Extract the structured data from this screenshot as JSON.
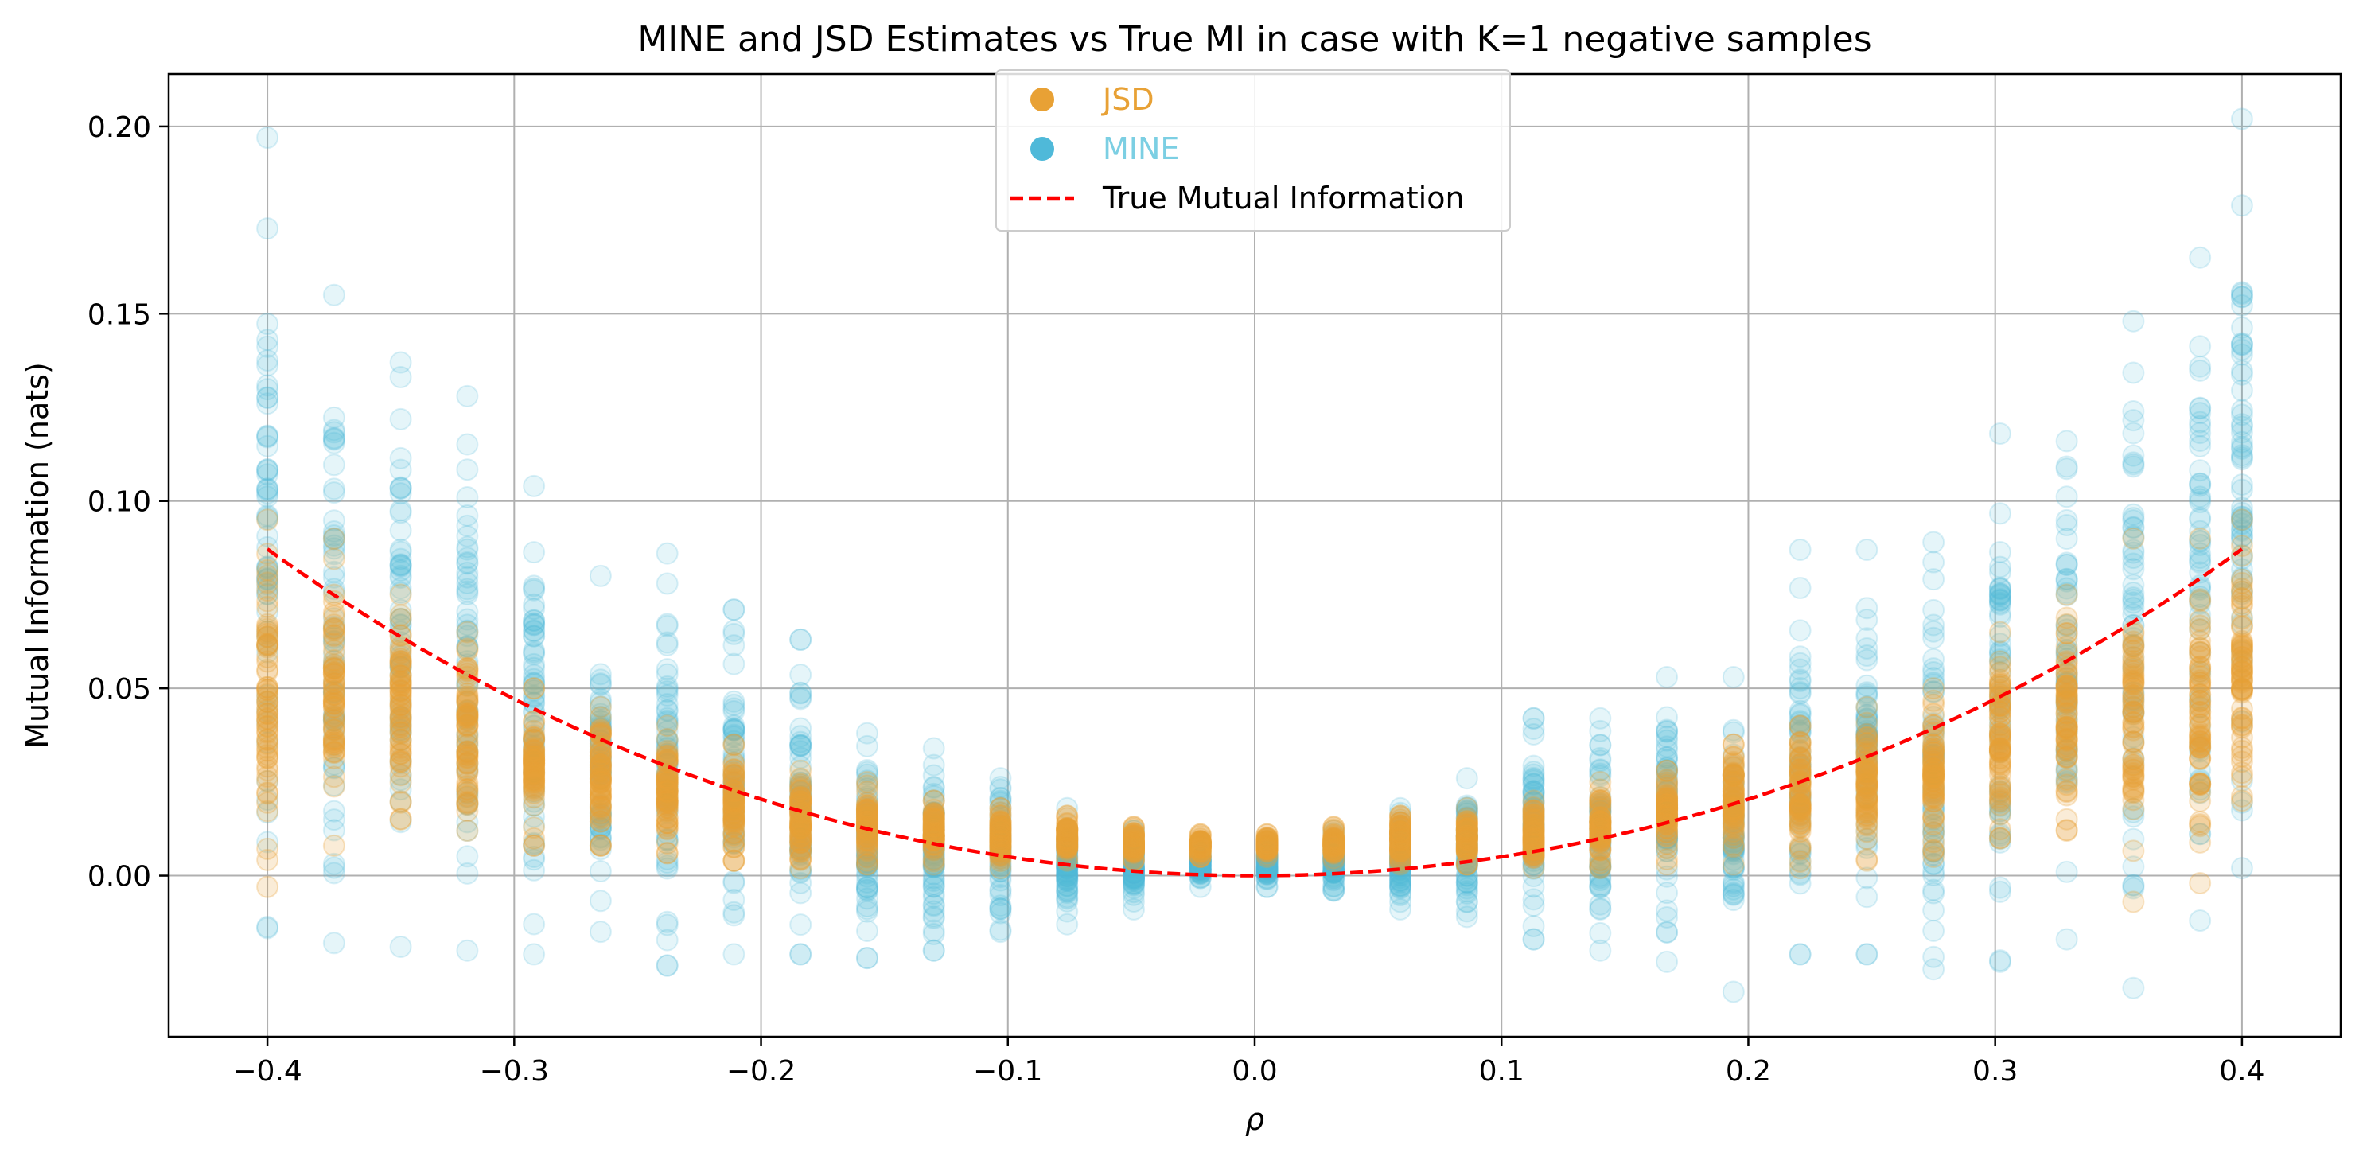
{
  "chart_data": {
    "type": "scatter",
    "title": "MINE and JSD Estimates vs True MI in case with K=1 negative samples",
    "xlabel": "ρ",
    "ylabel": "Mutual Information (nats)",
    "xlim": [
      -0.44,
      0.44
    ],
    "ylim": [
      -0.043,
      0.214
    ],
    "xticks": [
      -0.4,
      -0.3,
      -0.2,
      -0.1,
      0.0,
      0.1,
      0.2,
      0.3,
      0.4
    ],
    "xtick_labels": [
      "−0.4",
      "−0.3",
      "−0.2",
      "−0.1",
      "0.0",
      "0.1",
      "0.2",
      "0.3",
      "0.4"
    ],
    "yticks": [
      0.0,
      0.05,
      0.1,
      0.15,
      0.2
    ],
    "ytick_labels": [
      "0.00",
      "0.05",
      "0.10",
      "0.15",
      "0.20"
    ],
    "grid": true,
    "legend_position": "top-center",
    "legend": [
      {
        "label": "JSD",
        "kind": "marker",
        "color": "#E8A135"
      },
      {
        "label": "MINE",
        "kind": "marker",
        "color": "#4FB9D9"
      },
      {
        "label": "True Mutual Information",
        "kind": "dashed-line",
        "color": "#FF0000"
      }
    ],
    "rho": [
      -0.4,
      -0.3733,
      -0.3467,
      -0.32,
      -0.2933,
      -0.2667,
      -0.24,
      -0.2133,
      -0.1867,
      -0.16,
      -0.1333,
      -0.1067,
      -0.08,
      -0.0533,
      -0.0267,
      0.0,
      0.0267,
      0.0533,
      0.08,
      0.1067,
      0.1333,
      0.16,
      0.1867,
      0.2133,
      0.24,
      0.2667,
      0.2933,
      0.32,
      0.3467,
      0.3733,
      0.4
    ],
    "series": [
      {
        "name": "MINE",
        "color": "#4FB9D9",
        "opacity": 0.15,
        "x": [
          -0.4,
          -0.373,
          -0.346,
          -0.319,
          -0.292,
          -0.265,
          -0.238,
          -0.211,
          -0.184,
          -0.157,
          -0.13,
          -0.103,
          -0.076,
          -0.049,
          -0.022,
          0.005,
          0.032,
          0.059,
          0.086,
          0.113,
          0.14,
          0.167,
          0.194,
          0.221,
          0.248,
          0.275,
          0.302,
          0.329,
          0.356,
          0.383,
          0.4
        ],
        "y_min": [
          -0.014,
          -0.018,
          -0.019,
          -0.02,
          -0.021,
          -0.015,
          -0.024,
          -0.021,
          -0.021,
          -0.022,
          -0.02,
          -0.015,
          -0.013,
          -0.009,
          -0.003,
          -0.003,
          -0.004,
          -0.009,
          -0.011,
          -0.017,
          -0.02,
          -0.023,
          -0.031,
          -0.021,
          -0.021,
          -0.025,
          -0.023,
          -0.017,
          -0.03,
          -0.012,
          0.002
        ],
        "y_max": [
          0.197,
          0.155,
          0.137,
          0.128,
          0.104,
          0.08,
          0.086,
          0.071,
          0.063,
          0.038,
          0.034,
          0.026,
          0.018,
          0.012,
          0.008,
          0.008,
          0.012,
          0.018,
          0.026,
          0.042,
          0.042,
          0.053,
          0.053,
          0.087,
          0.087,
          0.089,
          0.118,
          0.116,
          0.148,
          0.165,
          0.202
        ]
      },
      {
        "name": "JSD",
        "color": "#E8A135",
        "opacity": 0.2,
        "x": [
          -0.4,
          -0.373,
          -0.346,
          -0.319,
          -0.292,
          -0.265,
          -0.238,
          -0.211,
          -0.184,
          -0.157,
          -0.13,
          -0.103,
          -0.076,
          -0.049,
          -0.022,
          0.005,
          0.032,
          0.059,
          0.086,
          0.113,
          0.14,
          0.167,
          0.194,
          0.221,
          0.248,
          0.275,
          0.302,
          0.329,
          0.356,
          0.383,
          0.4
        ],
        "y_min": [
          -0.003,
          0.008,
          0.015,
          0.012,
          0.008,
          0.008,
          0.006,
          0.004,
          0.002,
          0.003,
          0.003,
          0.002,
          0.004,
          0.004,
          0.005,
          0.005,
          0.004,
          0.003,
          0.003,
          0.002,
          0.002,
          0.003,
          0.003,
          0.002,
          0.004,
          0.005,
          0.01,
          0.012,
          -0.007,
          -0.002,
          0.02
        ],
        "y_max": [
          0.095,
          0.09,
          0.075,
          0.065,
          0.05,
          0.045,
          0.04,
          0.035,
          0.028,
          0.025,
          0.02,
          0.018,
          0.016,
          0.013,
          0.011,
          0.011,
          0.013,
          0.016,
          0.018,
          0.02,
          0.025,
          0.028,
          0.035,
          0.04,
          0.045,
          0.05,
          0.065,
          0.075,
          0.09,
          0.09,
          0.095
        ]
      },
      {
        "name": "True Mutual Information",
        "style": "dashed",
        "color": "#FF0000",
        "formula": "-0.5*ln(1-rho^2)",
        "x": [
          -0.4,
          0.4
        ]
      }
    ]
  }
}
